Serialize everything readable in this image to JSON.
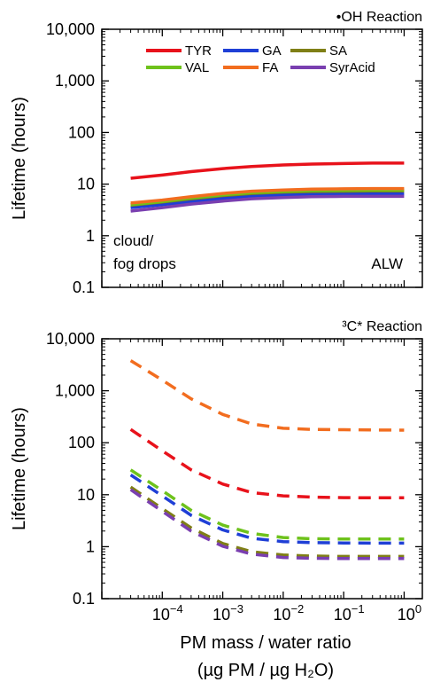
{
  "chart_data": [
    {
      "type": "line",
      "title": "•OH Reaction",
      "ylabel": "Lifetime (hours)",
      "yscale": "log",
      "ylim": [
        0.1,
        10000
      ],
      "xscale": "log",
      "xlim": [
        1e-05,
        2
      ],
      "yticks": [
        "0.1",
        "1",
        "10",
        "100",
        "1,000",
        "10,000"
      ],
      "annotations": {
        "left": [
          "cloud/",
          "fog drops"
        ],
        "right": "ALW"
      },
      "legend": [
        {
          "name": "TYR",
          "color": "#e8121b"
        },
        {
          "name": "GA",
          "color": "#1f3fd6"
        },
        {
          "name": "SA",
          "color": "#7f7f16"
        },
        {
          "name": "VAL",
          "color": "#6ec21c"
        },
        {
          "name": "FA",
          "color": "#f26d1f"
        },
        {
          "name": "SyrAcid",
          "color": "#7a3fb0"
        }
      ],
      "x": [
        3e-05,
        0.0001,
        0.0003,
        0.001,
        0.003,
        0.01,
        0.03,
        0.1,
        0.3,
        1
      ],
      "series": [
        {
          "name": "TYR",
          "color": "#e8121b",
          "style": "solid",
          "values": [
            13,
            15,
            17.5,
            20,
            22,
            23.5,
            24.5,
            25,
            25.5,
            25.5
          ]
        },
        {
          "name": "GA",
          "color": "#1f3fd6",
          "style": "solid",
          "values": [
            3.5,
            4.0,
            4.6,
            5.3,
            5.9,
            6.2,
            6.4,
            6.5,
            6.5,
            6.5
          ]
        },
        {
          "name": "SA",
          "color": "#7f7f16",
          "style": "solid",
          "values": [
            3.9,
            4.5,
            5.2,
            6.0,
            6.6,
            7.0,
            7.2,
            7.3,
            7.4,
            7.4
          ]
        },
        {
          "name": "VAL",
          "color": "#6ec21c",
          "style": "solid",
          "values": [
            4.0,
            4.6,
            5.4,
            6.2,
            6.8,
            7.2,
            7.5,
            7.6,
            7.7,
            7.7
          ]
        },
        {
          "name": "FA",
          "color": "#f26d1f",
          "style": "solid",
          "values": [
            4.3,
            4.9,
            5.7,
            6.6,
            7.3,
            7.7,
            8.0,
            8.1,
            8.2,
            8.2
          ]
        },
        {
          "name": "SyrAcid",
          "color": "#7a3fb0",
          "style": "solid",
          "values": [
            3.0,
            3.5,
            4.1,
            4.7,
            5.2,
            5.5,
            5.7,
            5.8,
            5.8,
            5.8
          ]
        }
      ]
    },
    {
      "type": "line",
      "title": "³C* Reaction",
      "ylabel": "Lifetime (hours)",
      "yscale": "log",
      "ylim": [
        0.1,
        10000
      ],
      "xscale": "log",
      "xlim": [
        1e-05,
        2
      ],
      "yticks": [
        "0.1",
        "1",
        "10",
        "100",
        "1,000",
        "10,000"
      ],
      "xticks": [
        "−4",
        "−3",
        "−2",
        "−1",
        "0"
      ],
      "xlabel": "PM mass / water ratio",
      "xlabel2": "(µg PM / µg H₂O)",
      "x": [
        3e-05,
        0.0001,
        0.0003,
        0.001,
        0.003,
        0.01,
        0.03,
        0.1,
        0.3,
        1
      ],
      "series": [
        {
          "name": "FA",
          "color": "#f26d1f",
          "style": "dashed",
          "values": [
            3800,
            1600,
            700,
            350,
            230,
            190,
            180,
            178,
            176,
            175
          ]
        },
        {
          "name": "TYR",
          "color": "#e8121b",
          "style": "dashed",
          "values": [
            180,
            70,
            30,
            16,
            11,
            9.5,
            9.0,
            8.8,
            8.7,
            8.7
          ]
        },
        {
          "name": "VAL",
          "color": "#6ec21c",
          "style": "dashed",
          "values": [
            30,
            12,
            5.0,
            2.6,
            1.8,
            1.5,
            1.42,
            1.4,
            1.4,
            1.4
          ]
        },
        {
          "name": "GA",
          "color": "#1f3fd6",
          "style": "dashed",
          "values": [
            24,
            9.5,
            4.0,
            2.1,
            1.45,
            1.25,
            1.2,
            1.18,
            1.17,
            1.17
          ]
        },
        {
          "name": "SA",
          "color": "#7f7f16",
          "style": "dashed",
          "values": [
            14,
            5.4,
            2.3,
            1.15,
            0.8,
            0.69,
            0.66,
            0.65,
            0.65,
            0.65
          ]
        },
        {
          "name": "SyrAcid",
          "color": "#7a3fb0",
          "style": "dashed",
          "values": [
            12.5,
            4.8,
            2.0,
            1.02,
            0.72,
            0.62,
            0.6,
            0.59,
            0.59,
            0.59
          ]
        }
      ]
    }
  ]
}
